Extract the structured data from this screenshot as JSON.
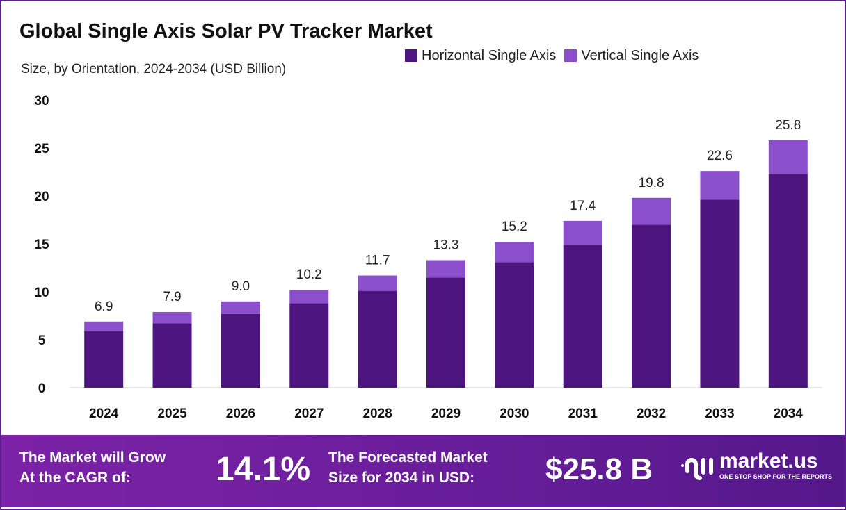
{
  "chart_data": {
    "type": "bar",
    "stacked": true,
    "title": "Global Single Axis Solar PV Tracker Market",
    "subtitle": "Size, by Orientation, 2024-2034 (USD Billion)",
    "categories": [
      "2024",
      "2025",
      "2026",
      "2027",
      "2028",
      "2029",
      "2030",
      "2031",
      "2032",
      "2033",
      "2034"
    ],
    "series": [
      {
        "name": "Horizontal Single Axis",
        "color": "#4e1580",
        "values": [
          5.9,
          6.7,
          7.7,
          8.8,
          10.1,
          11.5,
          13.1,
          14.9,
          17.0,
          19.6,
          22.3
        ]
      },
      {
        "name": "Vertical Single Axis",
        "color": "#8c4fcc",
        "values": [
          1.0,
          1.2,
          1.3,
          1.4,
          1.6,
          1.8,
          2.1,
          2.5,
          2.8,
          3.0,
          3.5
        ]
      }
    ],
    "totals": [
      "6.9",
      "7.9",
      "9.0",
      "10.2",
      "11.7",
      "13.3",
      "15.2",
      "17.4",
      "19.8",
      "22.6",
      "25.8"
    ],
    "ylim": [
      0,
      30
    ],
    "yticks": [
      "0",
      "5",
      "10",
      "15",
      "20",
      "25",
      "30"
    ],
    "grid": false,
    "legend_placement": "top-right"
  },
  "footer": {
    "cagr_label_1": "The Market will Grow",
    "cagr_label_2": "At the CAGR of:",
    "cagr_value": "14.1%",
    "forecast_label_1": "The Forecasted Market",
    "forecast_label_2": "Size for 2034 in USD:",
    "forecast_value": "$25.8 B",
    "logo_name": "market.us",
    "logo_tagline": "ONE STOP SHOP FOR THE REPORTS"
  }
}
